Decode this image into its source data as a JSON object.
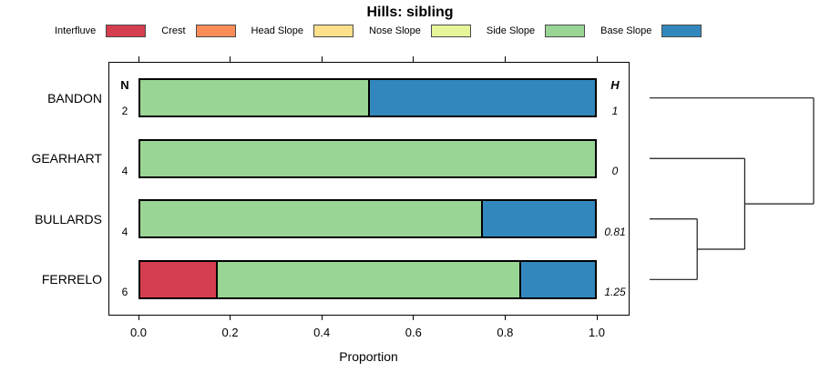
{
  "chart_data": {
    "type": "bar",
    "orientation": "horizontal-stacked",
    "title": "Hills: sibling",
    "xlabel": "Proportion",
    "xlim": [
      0,
      1
    ],
    "x_ticks": [
      "0.0",
      "0.2",
      "0.4",
      "0.6",
      "0.8",
      "1.0"
    ],
    "left_header": "N",
    "right_header": "H",
    "legend": [
      {
        "label": "Interfluve",
        "color": "#D53E4F"
      },
      {
        "label": "Crest",
        "color": "#FC8D59"
      },
      {
        "label": "Head Slope",
        "color": "#FEE08B"
      },
      {
        "label": "Nose Slope",
        "color": "#E6F598"
      },
      {
        "label": "Side Slope",
        "color": "#99D594"
      },
      {
        "label": "Base Slope",
        "color": "#3288BD"
      }
    ],
    "rows": [
      {
        "label": "BANDON",
        "n": "2",
        "h": "1",
        "segments": [
          {
            "category": "Side Slope",
            "value": 0.5
          },
          {
            "category": "Base Slope",
            "value": 0.5
          }
        ]
      },
      {
        "label": "GEARHART",
        "n": "4",
        "h": "0",
        "segments": [
          {
            "category": "Side Slope",
            "value": 1
          }
        ]
      },
      {
        "label": "BULLARDS",
        "n": "4",
        "h": "0.81",
        "segments": [
          {
            "category": "Side Slope",
            "value": 0.75
          },
          {
            "category": "Base Slope",
            "value": 0.25
          }
        ]
      },
      {
        "label": "FERRELO",
        "n": "6",
        "h": "1.25",
        "segments": [
          {
            "category": "Interfluve",
            "value": 0.1667
          },
          {
            "category": "Side Slope",
            "value": 0.6666
          },
          {
            "category": "Base Slope",
            "value": 0.1667
          }
        ]
      }
    ],
    "dendrogram": {
      "position": "right",
      "merges": [
        {
          "members": [
            "BULLARDS",
            "FERRELO"
          ],
          "height": 0.29
        },
        {
          "members": [
            "GEARHART",
            "merge0"
          ],
          "height": 0.58
        },
        {
          "members": [
            "BANDON",
            "merge1"
          ],
          "height": 1.0
        }
      ]
    }
  }
}
